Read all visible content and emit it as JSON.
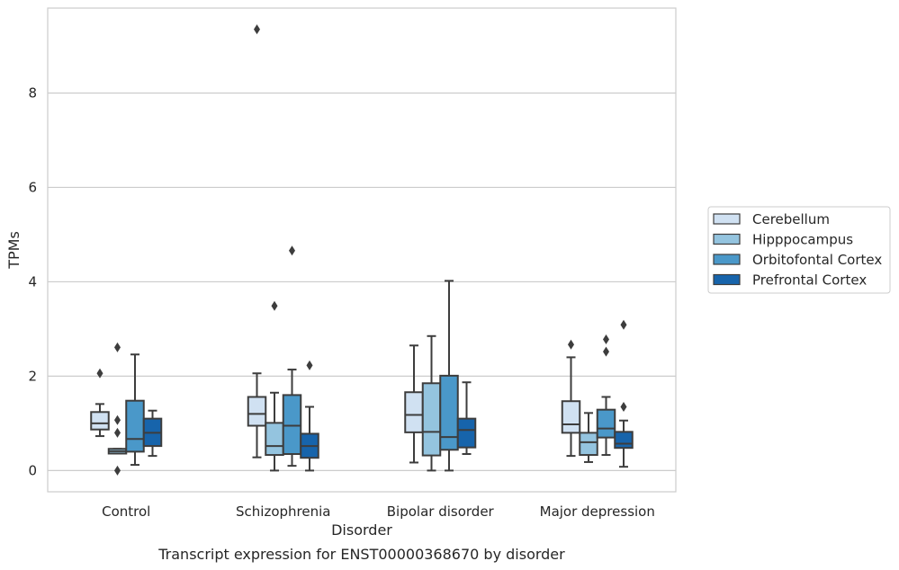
{
  "chart_data": {
    "type": "box",
    "title": "",
    "caption": "Transcript expression for ENST00000368670 by disorder",
    "xlabel": "Disorder",
    "ylabel": "TPMs",
    "ylim": [
      -0.45,
      9.8
    ],
    "yticks": [
      0,
      2,
      4,
      6,
      8
    ],
    "grid": "horizontal",
    "legend_position": "right",
    "categories": [
      "Control",
      "Schizophrenia",
      "Bipolar disorder",
      "Major depression"
    ],
    "series": [
      {
        "name": "Cerebellum",
        "color": "#d0e1f2",
        "boxes": [
          {
            "whisker_low": 0.73,
            "q1": 0.87,
            "median": 1.0,
            "q3": 1.24,
            "whisker_high": 1.41,
            "outliers": [
              2.06
            ]
          },
          {
            "whisker_low": 0.28,
            "q1": 0.95,
            "median": 1.2,
            "q3": 1.56,
            "whisker_high": 2.06,
            "outliers": [
              9.35
            ]
          },
          {
            "whisker_low": 0.17,
            "q1": 0.81,
            "median": 1.18,
            "q3": 1.66,
            "whisker_high": 2.65,
            "outliers": []
          },
          {
            "whisker_low": 0.31,
            "q1": 0.8,
            "median": 0.98,
            "q3": 1.47,
            "whisker_high": 2.4,
            "outliers": [
              2.67
            ]
          }
        ]
      },
      {
        "name": "Hipppocampus",
        "color": "#94c4df",
        "boxes": [
          {
            "whisker_low": 0.36,
            "q1": 0.36,
            "median": 0.41,
            "q3": 0.46,
            "whisker_high": 0.46,
            "outliers": [
              2.61,
              1.07,
              0.8,
              0.0
            ]
          },
          {
            "whisker_low": 0.0,
            "q1": 0.33,
            "median": 0.52,
            "q3": 1.01,
            "whisker_high": 1.65,
            "outliers": [
              3.49
            ]
          },
          {
            "whisker_low": 0.0,
            "q1": 0.32,
            "median": 0.82,
            "q3": 1.85,
            "whisker_high": 2.85,
            "outliers": []
          },
          {
            "whisker_low": 0.18,
            "q1": 0.33,
            "median": 0.6,
            "q3": 0.8,
            "whisker_high": 1.22,
            "outliers": []
          }
        ]
      },
      {
        "name": "Orbitofontal Cortex",
        "color": "#4a98c9",
        "boxes": [
          {
            "whisker_low": 0.12,
            "q1": 0.4,
            "median": 0.67,
            "q3": 1.48,
            "whisker_high": 2.46,
            "outliers": []
          },
          {
            "whisker_low": 0.1,
            "q1": 0.35,
            "median": 0.95,
            "q3": 1.6,
            "whisker_high": 2.14,
            "outliers": [
              4.66
            ]
          },
          {
            "whisker_low": 0.0,
            "q1": 0.44,
            "median": 0.71,
            "q3": 2.01,
            "whisker_high": 4.02,
            "outliers": []
          },
          {
            "whisker_low": 0.33,
            "q1": 0.7,
            "median": 0.89,
            "q3": 1.29,
            "whisker_high": 1.56,
            "outliers": [
              2.78,
              2.52
            ]
          }
        ]
      },
      {
        "name": "Prefrontal Cortex",
        "color": "#1764ab",
        "boxes": [
          {
            "whisker_low": 0.31,
            "q1": 0.52,
            "median": 0.8,
            "q3": 1.1,
            "whisker_high": 1.27,
            "outliers": []
          },
          {
            "whisker_low": 0.0,
            "q1": 0.27,
            "median": 0.52,
            "q3": 0.78,
            "whisker_high": 1.35,
            "outliers": [
              2.23
            ]
          },
          {
            "whisker_low": 0.35,
            "q1": 0.49,
            "median": 0.86,
            "q3": 1.1,
            "whisker_high": 1.87,
            "outliers": []
          },
          {
            "whisker_low": 0.08,
            "q1": 0.48,
            "median": 0.57,
            "q3": 0.82,
            "whisker_high": 1.06,
            "outliers": [
              1.35,
              3.09
            ]
          }
        ]
      }
    ]
  }
}
